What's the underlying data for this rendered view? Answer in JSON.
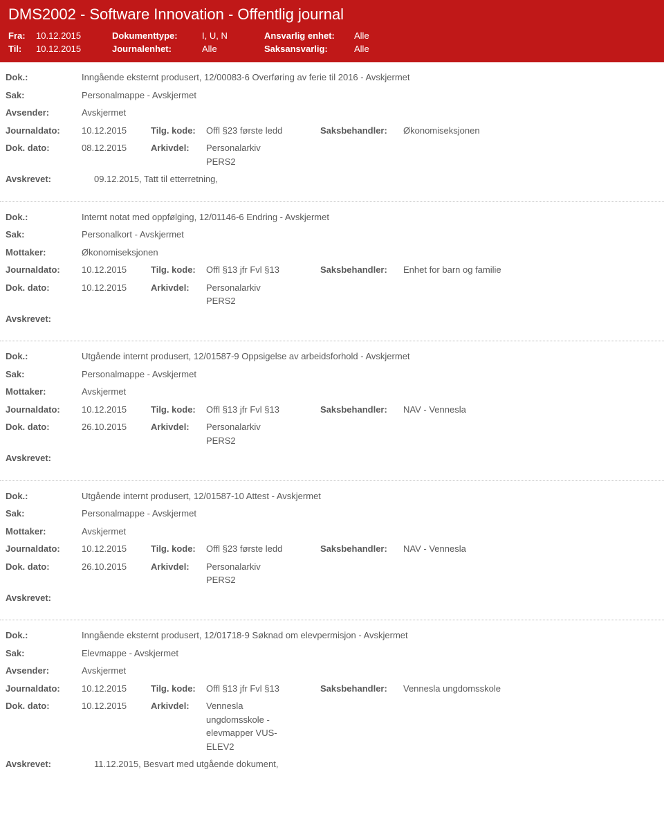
{
  "header": {
    "title": "DMS2002 - Software Innovation - Offentlig journal",
    "fra_label": "Fra:",
    "fra_value": "10.12.2015",
    "til_label": "Til:",
    "til_value": "10.12.2015",
    "doktype_label": "Dokumenttype:",
    "doktype_value": "I, U, N",
    "journalenhet_label": "Journalenhet:",
    "journalenhet_value": "Alle",
    "ansvarlig_label": "Ansvarlig enhet:",
    "ansvarlig_value": "Alle",
    "saks_label": "Saksansvarlig:",
    "saks_value": "Alle"
  },
  "labels": {
    "dok": "Dok.:",
    "sak": "Sak:",
    "avsender": "Avsender:",
    "mottaker": "Mottaker:",
    "journaldato": "Journaldato:",
    "tilgkode": "Tilg. kode:",
    "saksbehandler": "Saksbehandler:",
    "dokdato": "Dok. dato:",
    "arkivdel": "Arkivdel:",
    "avskrevet": "Avskrevet:"
  },
  "entries": [
    {
      "dok": "Inngående eksternt produsert, 12/00083-6 Overføring av ferie til 2016 - Avskjermet",
      "sak": "Personalmappe - Avskjermet",
      "party_label": "Avsender:",
      "party_value": "Avskjermet",
      "journaldato": "10.12.2015",
      "tilgkode": "Offl §23 første ledd",
      "saksbehandler": "Økonomiseksjonen",
      "dokdato": "08.12.2015",
      "arkivdel": "Personalarkiv\nPERS2",
      "avskrevet": "09.12.2015, Tatt til etterretning,"
    },
    {
      "dok": "Internt notat med oppfølging, 12/01146-6 Endring - Avskjermet",
      "sak": "Personalkort - Avskjermet",
      "party_label": "Mottaker:",
      "party_value": "Økonomiseksjonen",
      "journaldato": "10.12.2015",
      "tilgkode": "Offl §13 jfr Fvl §13",
      "saksbehandler": "Enhet for barn og familie",
      "dokdato": "10.12.2015",
      "arkivdel": "Personalarkiv\nPERS2",
      "avskrevet": ""
    },
    {
      "dok": "Utgående internt produsert, 12/01587-9 Oppsigelse av arbeidsforhold - Avskjermet",
      "sak": "Personalmappe - Avskjermet",
      "party_label": "Mottaker:",
      "party_value": "Avskjermet",
      "journaldato": "10.12.2015",
      "tilgkode": "Offl §13 jfr Fvl §13",
      "saksbehandler": "NAV - Vennesla",
      "dokdato": "26.10.2015",
      "arkivdel": "Personalarkiv\nPERS2",
      "avskrevet": ""
    },
    {
      "dok": "Utgående internt produsert, 12/01587-10 Attest - Avskjermet",
      "sak": "Personalmappe - Avskjermet",
      "party_label": "Mottaker:",
      "party_value": "Avskjermet",
      "journaldato": "10.12.2015",
      "tilgkode": "Offl §23 første ledd",
      "saksbehandler": "NAV - Vennesla",
      "dokdato": "26.10.2015",
      "arkivdel": "Personalarkiv\nPERS2",
      "avskrevet": ""
    },
    {
      "dok": "Inngående eksternt produsert, 12/01718-9 Søknad om elevpermisjon - Avskjermet",
      "sak": "Elevmappe - Avskjermet",
      "party_label": "Avsender:",
      "party_value": "Avskjermet",
      "journaldato": "10.12.2015",
      "tilgkode": "Offl §13 jfr Fvl §13",
      "saksbehandler": "Vennesla ungdomsskole",
      "dokdato": "10.12.2015",
      "arkivdel": "Vennesla\nungdomsskole -\nelevmapper VUS-\nELEV2",
      "avskrevet": "11.12.2015, Besvart med utgående dokument,"
    }
  ]
}
